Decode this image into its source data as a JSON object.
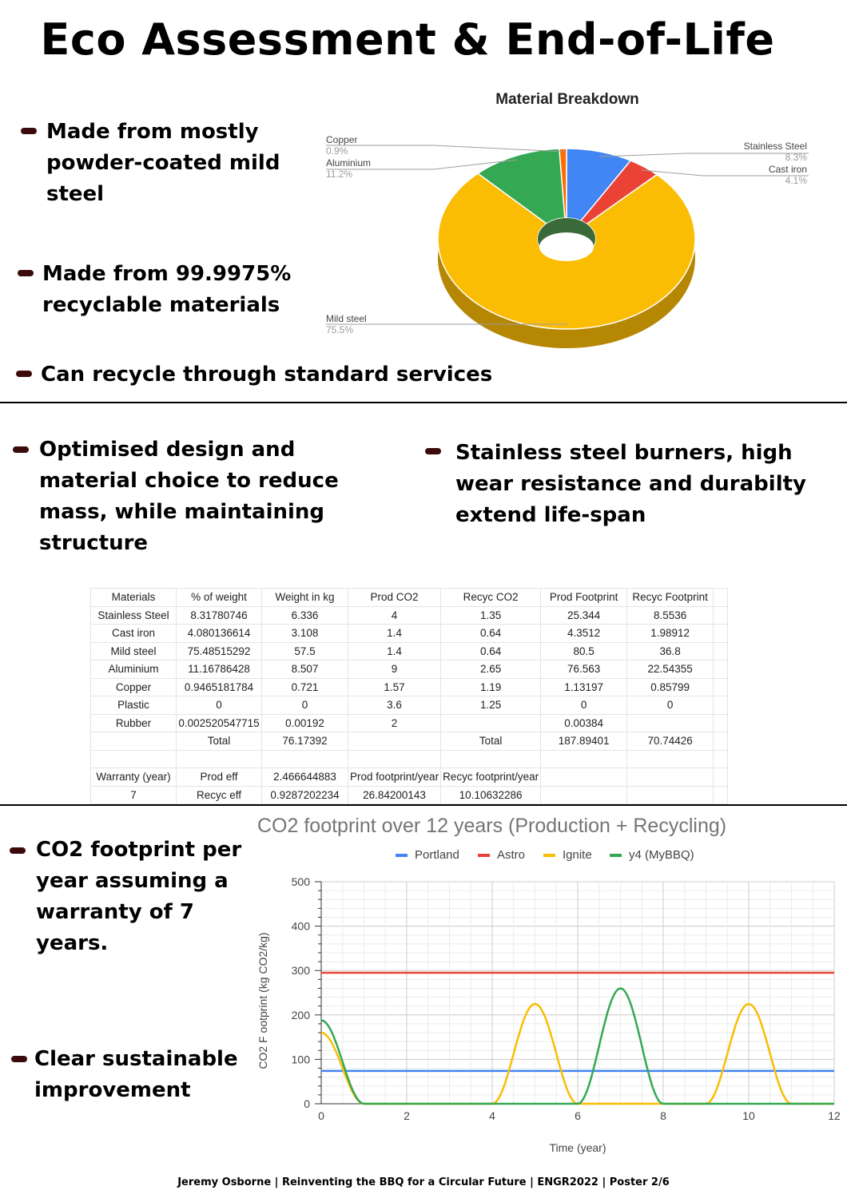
{
  "title": "Eco Assessment & End-of-Life",
  "bullets_top": [
    "Made from mostly powder-coated mild steel",
    "Made from 99.9975% recyclable materials",
    "Can recycle through standard services"
  ],
  "bullets_mid": [
    "Optimised design and material choice to reduce mass, while maintaining structure",
    "Stainless steel burners, high wear resistance and durabilty extend life-span"
  ],
  "bullets_bottom": [
    "CO2 footprint per year assuming a warranty of 7 years.",
    "Clear sustainable improvement"
  ],
  "pie": {
    "title": "Material Breakdown",
    "slices": [
      {
        "label": "Stainless Steel",
        "pct_label": "8.3%",
        "value": 8.3,
        "color": "#4285f4"
      },
      {
        "label": "Cast iron",
        "pct_label": "4.1%",
        "value": 4.1,
        "color": "#ea4335"
      },
      {
        "label": "Mild steel",
        "pct_label": "75.5%",
        "value": 75.5,
        "color": "#fbbc04"
      },
      {
        "label": "Aluminium",
        "pct_label": "11.2%",
        "value": 11.2,
        "color": "#34a853"
      },
      {
        "label": "Copper",
        "pct_label": "0.9%",
        "value": 0.9,
        "color": "#ff6d01"
      }
    ]
  },
  "table": {
    "rows": [
      [
        "Materials",
        "% of weight",
        "Weight in kg",
        "Prod CO2",
        "Recyc CO2",
        "Prod Footprint",
        "Recyc Footprint",
        ""
      ],
      [
        "Stainless Steel",
        "8.31780746",
        "6.336",
        "4",
        "1.35",
        "25.344",
        "8.5536",
        ""
      ],
      [
        "Cast iron",
        "4.080136614",
        "3.108",
        "1.4",
        "0.64",
        "4.3512",
        "1.98912",
        ""
      ],
      [
        "Mild steel",
        "75.48515292",
        "57.5",
        "1.4",
        "0.64",
        "80.5",
        "36.8",
        ""
      ],
      [
        "Aluminium",
        "11.16786428",
        "8.507",
        "9",
        "2.65",
        "76.563",
        "22.54355",
        ""
      ],
      [
        "Copper",
        "0.9465181784",
        "0.721",
        "1.57",
        "1.19",
        "1.13197",
        "0.85799",
        ""
      ],
      [
        "Plastic",
        "0",
        "0",
        "3.6",
        "1.25",
        "0",
        "0",
        ""
      ],
      [
        "Rubber",
        "0.002520547715",
        "0.00192",
        "2",
        "",
        "0.00384",
        "",
        ""
      ],
      [
        "",
        "Total",
        "76.17392",
        "",
        "Total",
        "187.89401",
        "70.74426",
        ""
      ],
      [
        "",
        "",
        "",
        "",
        "",
        "",
        "",
        ""
      ],
      [
        "Warranty (year)",
        "Prod eff",
        "2.466644883",
        "Prod footprint/year",
        "Recyc footprint/year",
        "",
        "",
        ""
      ],
      [
        "7",
        "Recyc eff",
        "0.9287202234",
        "26.84200143",
        "10.10632286",
        "",
        "",
        ""
      ]
    ]
  },
  "chart_data": {
    "type": "line",
    "title": "CO2 footprint over 12 years (Production + Recycling)",
    "xlabel": "Time (year)",
    "ylabel": "CO2 F ootprint (kg CO2/kg)",
    "xlim": [
      0,
      12
    ],
    "ylim": [
      0,
      500
    ],
    "xticks": [
      "0",
      "2",
      "4",
      "6",
      "8",
      "10",
      "12"
    ],
    "yticks": [
      "0",
      "100",
      "200",
      "300",
      "400",
      "500"
    ],
    "legend_position": "top",
    "grid": true,
    "series": [
      {
        "name": "Portland",
        "color": "#4285f4",
        "x": [
          0,
          12
        ],
        "y": [
          74,
          74
        ]
      },
      {
        "name": "Astro",
        "color": "#ea4335",
        "x": [
          0,
          12
        ],
        "y": [
          295,
          295
        ]
      },
      {
        "name": "Ignite",
        "color": "#fbbc04",
        "x": [
          0,
          1,
          2,
          3,
          4,
          5,
          6,
          7,
          8,
          9,
          10,
          11,
          12
        ],
        "y": [
          160,
          0,
          0,
          0,
          0,
          225,
          0,
          0,
          0,
          0,
          225,
          0,
          0
        ]
      },
      {
        "name": "y4 (MyBBQ)",
        "color": "#34a853",
        "x": [
          0,
          1,
          2,
          3,
          4,
          5,
          6,
          7,
          8,
          9,
          10,
          11,
          12
        ],
        "y": [
          188,
          0,
          0,
          0,
          0,
          0,
          0,
          260,
          0,
          0,
          0,
          0,
          0
        ]
      }
    ]
  },
  "footer": "Jeremy Osborne | Reinventing the BBQ for a Circular Future | ENGR2022 | Poster 2/6"
}
